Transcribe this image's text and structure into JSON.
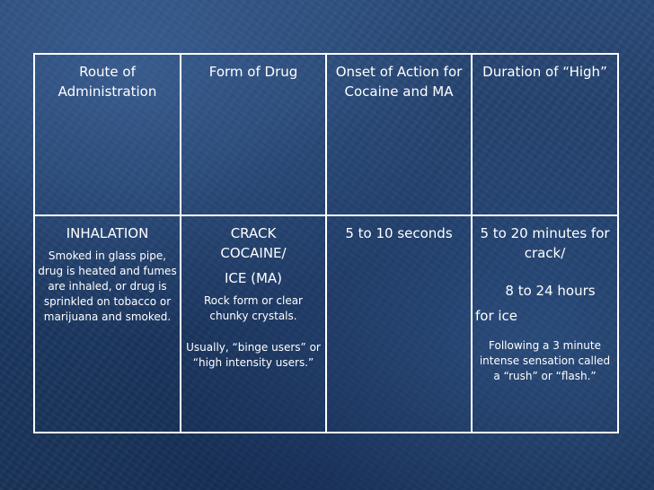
{
  "table": {
    "headers": [
      "Route of Administration",
      "Form of Drug",
      "Onset of Action for Cocaine and MA",
      "Duration of “High”"
    ],
    "row": {
      "route": {
        "title": "INHALATION",
        "detail": "Smoked in glass pipe, drug is heated and fumes are inhaled, or drug is sprinkled on tobacco or marijuana and smoked."
      },
      "form": {
        "title": "CRACK COCAINE/",
        "subtitle": "ICE (MA)",
        "detail1": "Rock form or clear chunky crystals.",
        "detail2": "Usually, “binge users” or “high intensity users.”"
      },
      "onset": {
        "value": "5 to 10 seconds"
      },
      "duration": {
        "line1": "5 to 20 minutes for crack/",
        "line2": "8 to 24 hours",
        "line3": "for ice",
        "detail": "Following a 3 minute intense sensation called a “rush” or “flash.”"
      }
    }
  }
}
